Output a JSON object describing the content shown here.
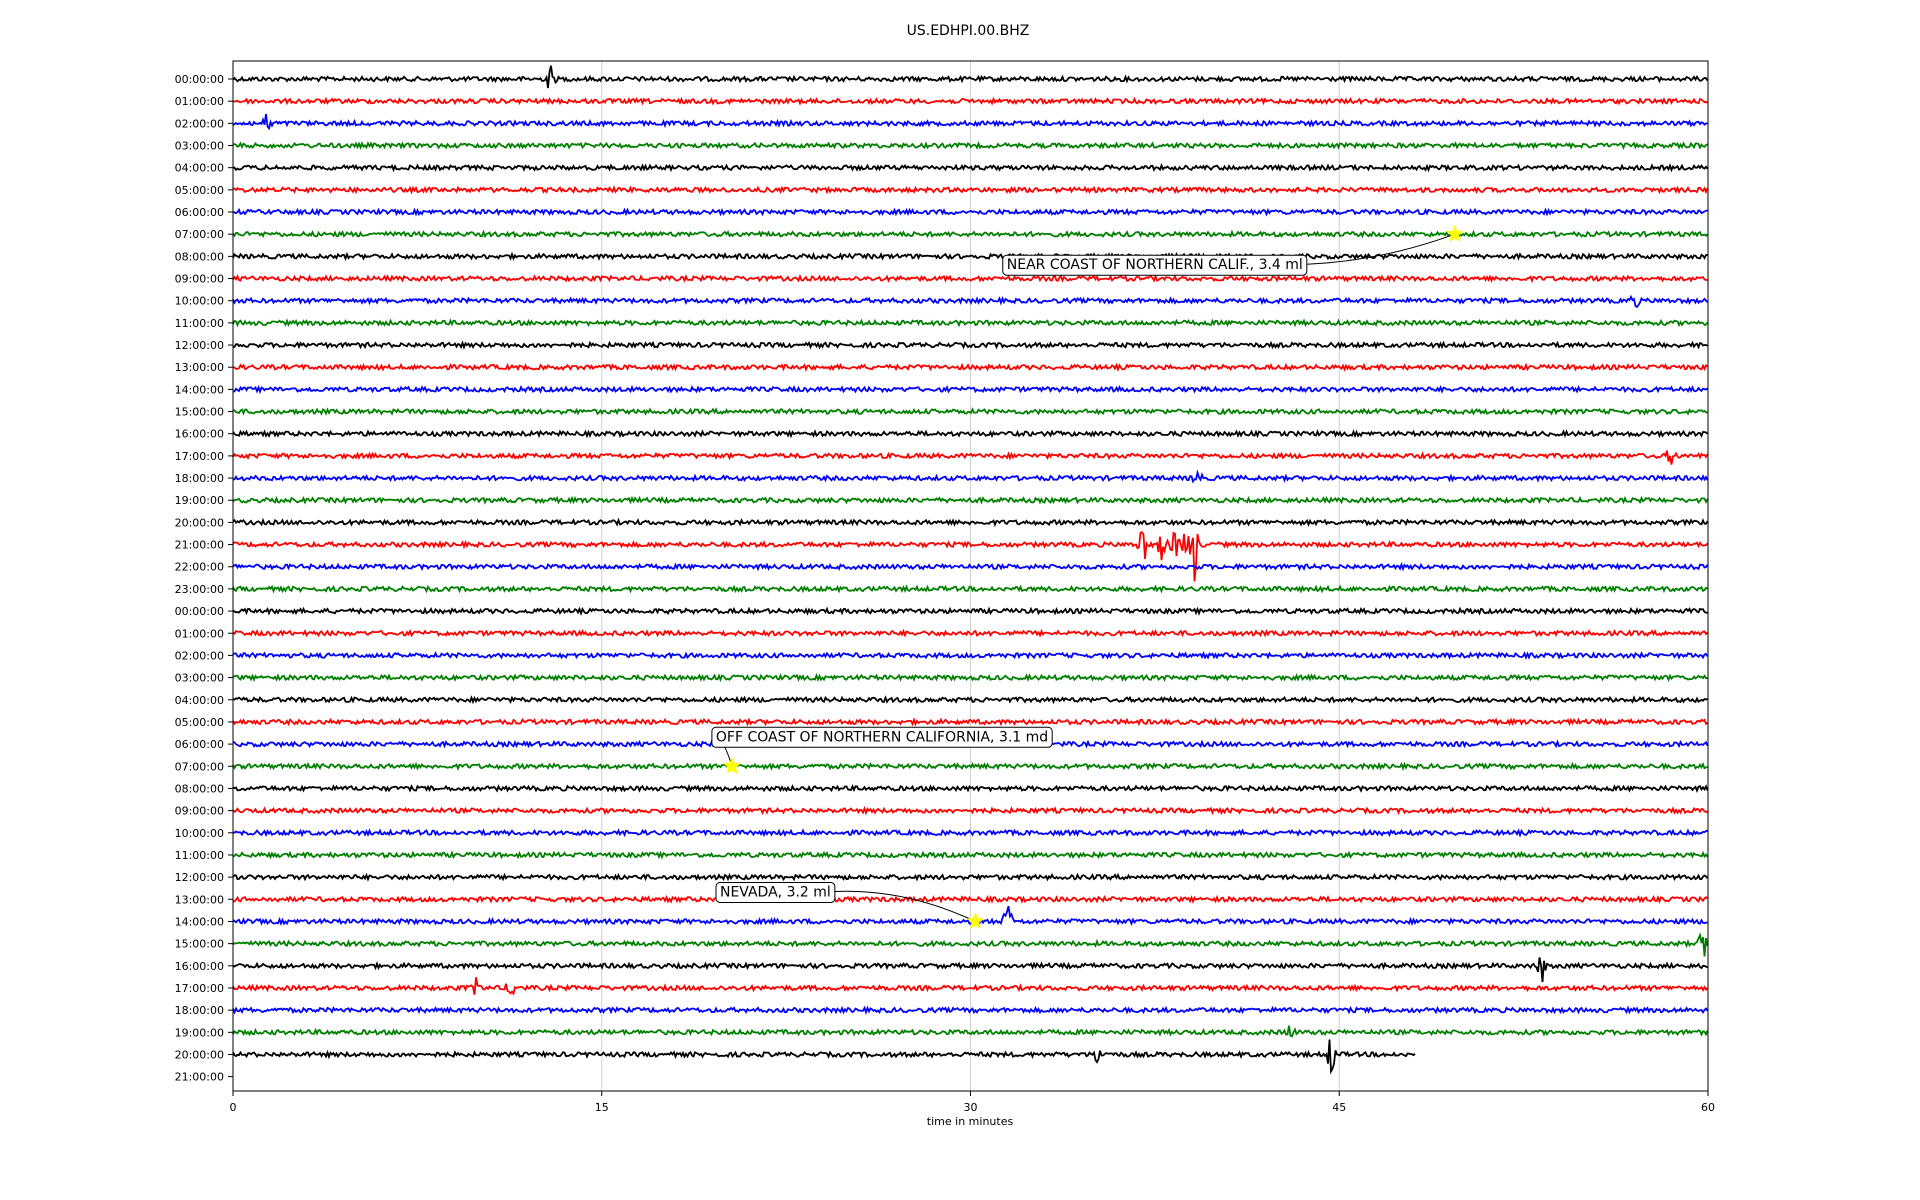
{
  "chart_data": {
    "type": "line",
    "title": "US.EDHPI.00.BHZ",
    "xlabel": "time in minutes",
    "ylabel": "",
    "xlim": [
      0,
      60
    ],
    "x_ticks": [
      0,
      15,
      30,
      45,
      60
    ],
    "x_tick_labels": [
      "0",
      "15",
      "30",
      "45",
      "60"
    ],
    "grid": "vertical at x ticks",
    "trace_colors": [
      "#000000",
      "#ff0000",
      "#0000ff",
      "#008000"
    ],
    "highlight_color": "#ffff00",
    "rows": [
      {
        "label": "00:00:00",
        "end": 60,
        "spikes": [
          {
            "x": 12.9,
            "amp": 0.6
          }
        ]
      },
      {
        "label": "01:00:00",
        "end": 60,
        "spikes": []
      },
      {
        "label": "02:00:00",
        "end": 60,
        "spikes": [
          {
            "x": 1.4,
            "amp": 0.4
          }
        ]
      },
      {
        "label": "03:00:00",
        "end": 60,
        "spikes": []
      },
      {
        "label": "04:00:00",
        "end": 60,
        "spikes": []
      },
      {
        "label": "05:00:00",
        "end": 60,
        "spikes": []
      },
      {
        "label": "06:00:00",
        "end": 60,
        "spikes": []
      },
      {
        "label": "07:00:00",
        "end": 60,
        "spikes": []
      },
      {
        "label": "08:00:00",
        "end": 60,
        "spikes": []
      },
      {
        "label": "09:00:00",
        "end": 60,
        "spikes": []
      },
      {
        "label": "10:00:00",
        "end": 60,
        "spikes": [
          {
            "x": 57.0,
            "amp": 0.3
          }
        ]
      },
      {
        "label": "11:00:00",
        "end": 60,
        "spikes": []
      },
      {
        "label": "12:00:00",
        "end": 60,
        "spikes": []
      },
      {
        "label": "13:00:00",
        "end": 60,
        "spikes": []
      },
      {
        "label": "14:00:00",
        "end": 60,
        "spikes": []
      },
      {
        "label": "15:00:00",
        "end": 60,
        "spikes": []
      },
      {
        "label": "16:00:00",
        "end": 60,
        "spikes": []
      },
      {
        "label": "17:00:00",
        "end": 60,
        "spikes": [
          {
            "x": 58.5,
            "amp": 0.4
          }
        ]
      },
      {
        "label": "18:00:00",
        "end": 60,
        "spikes": [
          {
            "x": 39.2,
            "amp": 0.4
          }
        ]
      },
      {
        "label": "19:00:00",
        "end": 60,
        "spikes": []
      },
      {
        "label": "20:00:00",
        "end": 60,
        "spikes": []
      },
      {
        "label": "21:00:00",
        "end": 60,
        "spikes": [
          {
            "x": 37.0,
            "amp": 0.9
          },
          {
            "x": 37.8,
            "amp": 0.7
          },
          {
            "x": 38.3,
            "amp": 0.6
          },
          {
            "x": 38.8,
            "amp": 1.0
          },
          {
            "x": 39.1,
            "amp": 1.6
          }
        ]
      },
      {
        "label": "22:00:00",
        "end": 60,
        "spikes": []
      },
      {
        "label": "23:00:00",
        "end": 60,
        "spikes": []
      },
      {
        "label": "00:00:00",
        "end": 60,
        "spikes": []
      },
      {
        "label": "01:00:00",
        "end": 60,
        "spikes": []
      },
      {
        "label": "02:00:00",
        "end": 60,
        "spikes": []
      },
      {
        "label": "03:00:00",
        "end": 60,
        "spikes": []
      },
      {
        "label": "04:00:00",
        "end": 60,
        "spikes": []
      },
      {
        "label": "05:00:00",
        "end": 60,
        "spikes": []
      },
      {
        "label": "06:00:00",
        "end": 60,
        "spikes": []
      },
      {
        "label": "07:00:00",
        "end": 60,
        "spikes": []
      },
      {
        "label": "08:00:00",
        "end": 60,
        "spikes": []
      },
      {
        "label": "09:00:00",
        "end": 60,
        "spikes": []
      },
      {
        "label": "10:00:00",
        "end": 60,
        "spikes": []
      },
      {
        "label": "11:00:00",
        "end": 60,
        "spikes": []
      },
      {
        "label": "12:00:00",
        "end": 60,
        "spikes": []
      },
      {
        "label": "13:00:00",
        "end": 60,
        "spikes": []
      },
      {
        "label": "14:00:00",
        "end": 60,
        "spikes": [
          {
            "x": 31.5,
            "amp": 0.8
          }
        ]
      },
      {
        "label": "15:00:00",
        "end": 60,
        "spikes": [
          {
            "x": 59.8,
            "amp": 0.6
          }
        ]
      },
      {
        "label": "16:00:00",
        "end": 60,
        "spikes": [
          {
            "x": 53.2,
            "amp": 0.8
          }
        ]
      },
      {
        "label": "17:00:00",
        "end": 60,
        "spikes": [
          {
            "x": 9.9,
            "amp": 0.4
          },
          {
            "x": 11.3,
            "amp": 0.4
          }
        ]
      },
      {
        "label": "18:00:00",
        "end": 60,
        "spikes": []
      },
      {
        "label": "19:00:00",
        "end": 60,
        "spikes": [
          {
            "x": 43.0,
            "amp": 0.3
          }
        ]
      },
      {
        "label": "20:00:00",
        "end": 48.1,
        "spikes": [
          {
            "x": 35.2,
            "amp": 0.5
          },
          {
            "x": 44.7,
            "amp": 1.0
          }
        ]
      },
      {
        "label": "21:00:00",
        "end": 0,
        "spikes": []
      }
    ],
    "events": [
      {
        "text": "NEAR COAST OF NORTHERN CALIF., 3.4 ml",
        "row": 7,
        "x": 49.7
      },
      {
        "text": "OFF COAST OF NORTHERN CALIFORNIA, 3.1 md",
        "row": 31,
        "x": 20.3
      },
      {
        "text": "NEVADA, 3.2 ml",
        "row": 38,
        "x": 30.2
      }
    ]
  }
}
